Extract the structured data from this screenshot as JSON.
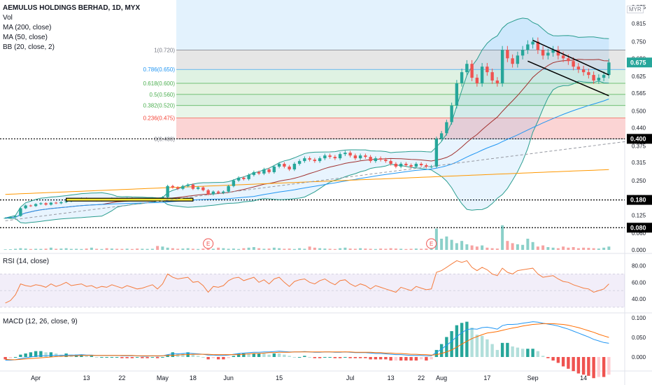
{
  "legend": {
    "title": "AEMULUS HOLDINGS BERHAD, 1D, MYX",
    "vol": "Vol",
    "ma200": "MA (200, close)",
    "ma50": "MA (50, close)",
    "bb": "BB (20, close, 2)"
  },
  "currency": "MYR",
  "rsi_label": "RSI (14, close)",
  "macd_label": "MACD (12, 26, close, 9)",
  "colors": {
    "up": "#26a69a",
    "down": "#ef5350",
    "ma200": "#ff9800",
    "ma50": "#2196f3",
    "bb": "#2a9d8f",
    "basis": "#a1312f"
  },
  "chart_data": {
    "type": "candlestick",
    "x_ticks": [
      "Apr",
      "13",
      "22",
      "May",
      "18",
      "Jun",
      "15",
      "Jul",
      "13",
      "22",
      "Aug",
      "17",
      "Sep",
      "14"
    ],
    "price_ticks": [
      "0.875",
      "0.815",
      "0.750",
      "0.690",
      "0.625",
      "0.565",
      "0.500",
      "0.440",
      "0.375",
      "0.315",
      "0.250",
      "0.190",
      "0.125",
      "0.060",
      "0.000"
    ],
    "fib_levels": [
      {
        "label": "1(0.720)",
        "value": 0.72
      },
      {
        "label": "0.786(0.650)",
        "value": 0.65
      },
      {
        "label": "0.618(0.600)",
        "value": 0.6
      },
      {
        "label": "0.5(0.560)",
        "value": 0.56
      },
      {
        "label": "0.382(0.520)",
        "value": 0.52
      },
      {
        "label": "0.236(0.475)",
        "value": 0.475
      },
      {
        "label": "0(0.400)",
        "value": 0.4
      }
    ],
    "horizontal_levels": [
      {
        "label": "0.400",
        "value": 0.4
      },
      {
        "label": "0.180",
        "value": 0.18
      },
      {
        "label": "0.080",
        "value": 0.08
      }
    ],
    "last_price": "0.675",
    "earnings_markers": [
      "E",
      "E"
    ],
    "close": [
      0.115,
      0.118,
      0.122,
      0.15,
      0.16,
      0.158,
      0.165,
      0.168,
      0.163,
      0.17,
      0.168,
      0.172,
      0.175,
      0.18,
      0.182,
      0.185,
      0.18,
      0.182,
      0.178,
      0.182,
      0.18,
      0.185,
      0.182,
      0.18,
      0.185,
      0.182,
      0.18,
      0.18,
      0.183,
      0.185,
      0.18,
      0.19,
      0.23,
      0.225,
      0.22,
      0.23,
      0.235,
      0.22,
      0.225,
      0.215,
      0.2,
      0.21,
      0.205,
      0.21,
      0.23,
      0.25,
      0.26,
      0.255,
      0.27,
      0.28,
      0.275,
      0.29,
      0.28,
      0.3,
      0.31,
      0.3,
      0.29,
      0.31,
      0.32,
      0.33,
      0.325,
      0.32,
      0.33,
      0.34,
      0.335,
      0.33,
      0.345,
      0.35,
      0.34,
      0.33,
      0.34,
      0.335,
      0.32,
      0.33,
      0.325,
      0.32,
      0.31,
      0.3,
      0.31,
      0.305,
      0.3,
      0.31,
      0.305,
      0.3,
      0.3,
      0.4,
      0.42,
      0.46,
      0.52,
      0.6,
      0.64,
      0.67,
      0.62,
      0.6,
      0.66,
      0.64,
      0.61,
      0.6,
      0.72,
      0.69,
      0.67,
      0.7,
      0.72,
      0.74,
      0.75,
      0.72,
      0.7,
      0.71,
      0.72,
      0.7,
      0.69,
      0.68,
      0.66,
      0.65,
      0.64,
      0.63,
      0.61,
      0.62,
      0.63,
      0.675
    ],
    "volume": [
      0.005,
      0.006,
      0.01,
      0.015,
      0.012,
      0.008,
      0.01,
      0.009,
      0.011,
      0.02,
      0.01,
      0.012,
      0.015,
      0.009,
      0.01,
      0.008,
      0.012,
      0.02,
      0.01,
      0.008,
      0.015,
      0.012,
      0.01,
      0.009,
      0.011,
      0.008,
      0.012,
      0.01,
      0.009,
      0.01,
      0.035,
      0.03,
      0.02,
      0.015,
      0.01,
      0.012,
      0.015,
      0.01,
      0.008,
      0.012,
      0.015,
      0.01,
      0.02,
      0.015,
      0.01,
      0.012,
      0.008,
      0.015,
      0.02,
      0.025,
      0.015,
      0.01,
      0.012,
      0.02,
      0.015,
      0.01,
      0.012,
      0.008,
      0.015,
      0.01,
      0.03,
      0.02,
      0.015,
      0.012,
      0.01,
      0.008,
      0.015,
      0.02,
      0.012,
      0.01,
      0.015,
      0.012,
      0.01,
      0.008,
      0.012,
      0.01,
      0.015,
      0.012,
      0.01,
      0.008,
      0.01,
      0.012,
      0.01,
      0.012,
      0.01,
      0.19,
      0.1,
      0.12,
      0.09,
      0.06,
      0.08,
      0.05,
      0.04,
      0.03,
      0.04,
      0.02,
      0.015,
      0.012,
      0.22,
      0.08,
      0.06,
      0.05,
      0.045,
      0.1,
      0.07,
      0.03,
      0.04,
      0.025,
      0.02,
      0.015,
      0.03,
      0.02,
      0.025,
      0.015,
      0.02,
      0.018,
      0.015,
      0.012,
      0.02,
      0.03
    ],
    "rsi_ticks": [
      "80.00",
      "60.00",
      "40.00"
    ],
    "rsi": [
      35,
      38,
      45,
      58,
      56,
      55,
      57,
      56,
      54,
      58,
      55,
      57,
      60,
      56,
      57,
      58,
      55,
      56,
      53,
      55,
      54,
      57,
      55,
      53,
      56,
      54,
      52,
      53,
      55,
      57,
      52,
      58,
      70,
      66,
      64,
      65,
      66,
      60,
      61,
      56,
      48,
      55,
      54,
      56,
      62,
      65,
      66,
      62,
      64,
      66,
      60,
      63,
      58,
      64,
      66,
      60,
      55,
      61,
      63,
      64,
      60,
      58,
      62,
      64,
      60,
      57,
      62,
      63,
      58,
      55,
      58,
      56,
      52,
      56,
      54,
      52,
      50,
      48,
      54,
      52,
      50,
      55,
      53,
      51,
      52,
      72,
      74,
      78,
      82,
      86,
      84,
      86,
      78,
      74,
      78,
      75,
      70,
      68,
      77,
      72,
      70,
      74,
      75,
      76,
      77,
      70,
      66,
      67,
      68,
      64,
      61,
      60,
      57,
      55,
      53,
      52,
      48,
      50,
      52,
      58
    ],
    "macd_ticks": [
      "0.100",
      "0.050",
      "0.000"
    ],
    "macd": [
      -0.008,
      -0.008,
      -0.007,
      -0.004,
      -0.002,
      0,
      0.002,
      0.003,
      0.003,
      0.004,
      0.004,
      0.004,
      0.005,
      0.005,
      0.005,
      0.006,
      0.005,
      0.005,
      0.004,
      0.004,
      0.004,
      0.004,
      0.004,
      0.003,
      0.003,
      0.003,
      0.003,
      0.002,
      0.002,
      0.003,
      0.002,
      0.003,
      0.006,
      0.008,
      0.008,
      0.009,
      0.01,
      0.009,
      0.008,
      0.007,
      0.005,
      0.005,
      0.004,
      0.004,
      0.005,
      0.007,
      0.009,
      0.01,
      0.011,
      0.012,
      0.012,
      0.013,
      0.013,
      0.014,
      0.015,
      0.014,
      0.013,
      0.013,
      0.013,
      0.014,
      0.013,
      0.012,
      0.012,
      0.013,
      0.013,
      0.012,
      0.012,
      0.013,
      0.012,
      0.011,
      0.011,
      0.011,
      0.01,
      0.009,
      0.009,
      0.008,
      0.007,
      0.006,
      0.006,
      0.005,
      0.004,
      0.004,
      0.004,
      0.003,
      0.003,
      0.012,
      0.02,
      0.03,
      0.04,
      0.052,
      0.062,
      0.07,
      0.072,
      0.071,
      0.075,
      0.076,
      0.074,
      0.071,
      0.08,
      0.083,
      0.083,
      0.084,
      0.086,
      0.088,
      0.09,
      0.089,
      0.086,
      0.084,
      0.082,
      0.079,
      0.075,
      0.071,
      0.066,
      0.061,
      0.056,
      0.051,
      0.045,
      0.041,
      0.037,
      0.035
    ],
    "signal": [
      -0.006,
      -0.007,
      -0.007,
      -0.006,
      -0.005,
      -0.004,
      -0.003,
      -0.002,
      -0.001,
      0,
      0.001,
      0.002,
      0.002,
      0.003,
      0.003,
      0.004,
      0.004,
      0.004,
      0.004,
      0.004,
      0.004,
      0.004,
      0.004,
      0.004,
      0.004,
      0.004,
      0.003,
      0.003,
      0.003,
      0.003,
      0.003,
      0.003,
      0.004,
      0.004,
      0.005,
      0.006,
      0.006,
      0.007,
      0.007,
      0.007,
      0.007,
      0.006,
      0.006,
      0.006,
      0.006,
      0.006,
      0.006,
      0.007,
      0.008,
      0.009,
      0.009,
      0.01,
      0.011,
      0.011,
      0.012,
      0.012,
      0.012,
      0.013,
      0.013,
      0.013,
      0.013,
      0.013,
      0.013,
      0.013,
      0.013,
      0.013,
      0.013,
      0.013,
      0.013,
      0.012,
      0.012,
      0.012,
      0.012,
      0.011,
      0.011,
      0.01,
      0.01,
      0.009,
      0.009,
      0.008,
      0.007,
      0.007,
      0.006,
      0.006,
      0.005,
      0.006,
      0.009,
      0.013,
      0.018,
      0.025,
      0.033,
      0.04,
      0.047,
      0.052,
      0.057,
      0.061,
      0.063,
      0.065,
      0.068,
      0.071,
      0.074,
      0.076,
      0.079,
      0.081,
      0.083,
      0.084,
      0.085,
      0.085,
      0.085,
      0.084,
      0.083,
      0.081,
      0.078,
      0.075,
      0.071,
      0.067,
      0.063,
      0.058,
      0.054,
      0.05
    ]
  }
}
